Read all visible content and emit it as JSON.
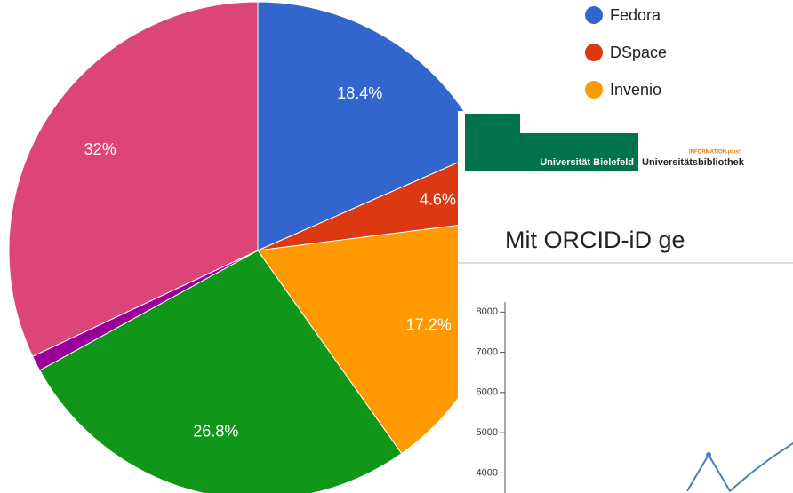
{
  "chart_data": [
    {
      "type": "pie",
      "categories": [
        "Fedora",
        "DSpace",
        "Invenio",
        null,
        null,
        null
      ],
      "values": [
        18.4,
        4.6,
        17.2,
        26.8,
        1,
        32
      ],
      "value_labels": [
        "18.4%",
        "4.6%",
        "17.2%",
        "26.8%",
        null,
        "32%"
      ],
      "colors": [
        "#3366cc",
        "#dc3912",
        "#ff9900",
        "#109618",
        "#990099",
        "#dd4477"
      ]
    },
    {
      "type": "line",
      "categories": [
        null,
        null,
        null,
        null,
        null,
        null
      ],
      "values": [
        3550,
        4450,
        3550,
        4000,
        4400,
        4750
      ],
      "color": "#4a7ebb",
      "ylim": [
        3500,
        8250
      ],
      "yticks": [
        4000,
        5000,
        6000,
        7000,
        8000
      ]
    }
  ],
  "slide": {
    "logo": "Universität Bielefeld",
    "tagline": "INFORMATION.plus!",
    "library": "Universitätsbibliothek",
    "title": "Mit ORCID-iD ge"
  }
}
